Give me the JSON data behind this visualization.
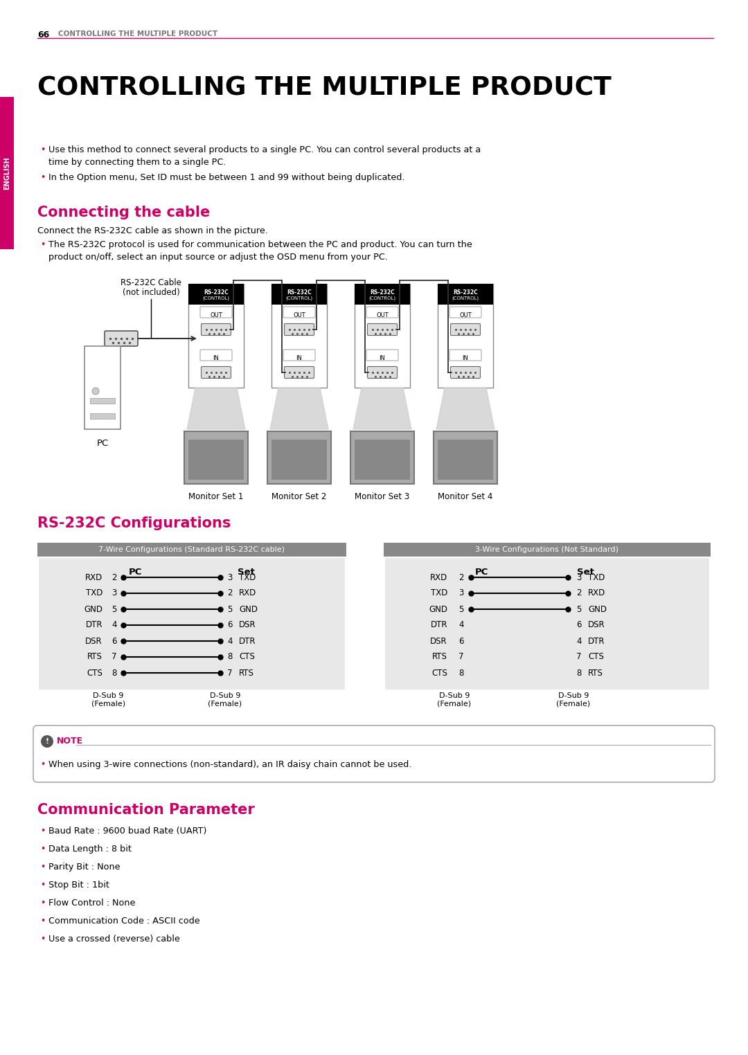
{
  "page_num": "66",
  "page_header": "CONTROLLING THE MULTIPLE PRODUCT",
  "main_title": "CONTROLLING THE MULTIPLE PRODUCT",
  "english_tab": "ENGLISH",
  "bullet_color": "#cc0066",
  "bullets_intro": [
    "Use this method to connect several products to a single PC. You can control several products at a\n    time by connecting them to a single PC.",
    "In the Option menu, Set ID must be between 1 and 99 without being duplicated."
  ],
  "section1_title": "Connecting the cable",
  "section1_body": "Connect the RS-232C cable as shown in the picture.",
  "section1_bullet_l1": "The RS-232C protocol is used for communication between the PC and product. You can turn the",
  "section1_bullet_l2": "product on/off, select an input source or adjust the OSD menu from your PC.",
  "monitor_labels": [
    "Monitor Set 1",
    "Monitor Set 2",
    "Monitor Set 3",
    "Monitor Set 4"
  ],
  "pc_label": "PC",
  "section2_title": "RS-232C Configurations",
  "wire7_title": "7-Wire Configurations (Standard RS-232C cable)",
  "wire3_title": "3-Wire Configurations (Not Standard)",
  "wire7_pc_signals": [
    "RXD",
    "TXD",
    "GND",
    "DTR",
    "DSR",
    "RTS",
    "CTS"
  ],
  "wire7_pc_pins": [
    2,
    3,
    5,
    4,
    6,
    7,
    8
  ],
  "wire7_set_pins": [
    3,
    2,
    5,
    6,
    4,
    8,
    7
  ],
  "wire7_set_signals": [
    "TXD",
    "RXD",
    "GND",
    "DSR",
    "DTR",
    "CTS",
    "RTS"
  ],
  "wire3_pc_signals": [
    "RXD",
    "TXD",
    "GND",
    "DTR",
    "DSR",
    "RTS",
    "CTS"
  ],
  "wire3_pc_pins": [
    2,
    3,
    5,
    4,
    6,
    7,
    8
  ],
  "wire3_set_pins": [
    3,
    2,
    5,
    6,
    4,
    7,
    8
  ],
  "wire3_set_signals": [
    "TXD",
    "RXD",
    "GND",
    "DSR",
    "DTR",
    "CTS",
    "RTS"
  ],
  "wire3_connected": [
    0,
    1,
    2
  ],
  "note_text": "When using 3-wire connections (non-standard), an IR daisy chain cannot be used.",
  "section3_title": "Communication Parameter",
  "comm_bullets": [
    "Baud Rate : 9600 buad Rate (UART)",
    "Data Length : 8 bit",
    "Parity Bit : None",
    "Stop Bit : 1bit",
    "Flow Control : None",
    "Communication Code : ASCII code",
    "Use a crossed (reverse) cable"
  ],
  "bg_color": "#ffffff",
  "text_color": "#000000",
  "header_line_color": "#cc0066",
  "table_header_bg": "#888888"
}
